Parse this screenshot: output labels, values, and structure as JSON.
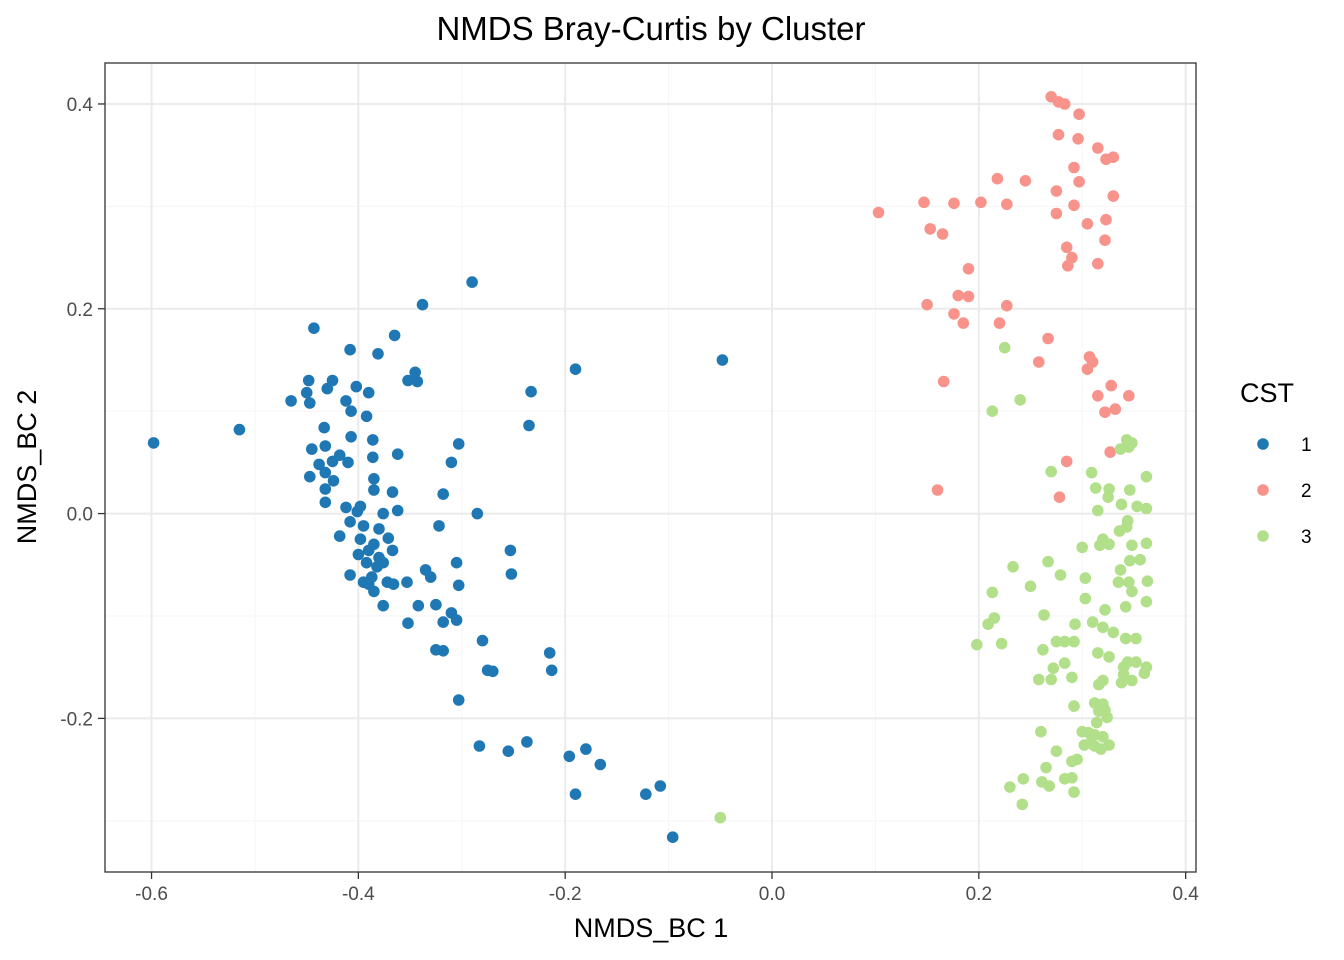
{
  "chart_data": {
    "type": "scatter",
    "title": "NMDS Bray-Curtis by Cluster",
    "xlabel": "NMDS_BC 1",
    "ylabel": "NMDS_BC 2",
    "xlim": [
      -0.645,
      0.41
    ],
    "ylim": [
      -0.35,
      0.44
    ],
    "x_ticks": [
      -0.6,
      -0.4,
      -0.2,
      0.0,
      0.2,
      0.4
    ],
    "x_tick_labels": [
      "-0.6",
      "-0.4",
      "-0.2",
      "0.0",
      "0.2",
      "0.4"
    ],
    "y_ticks": [
      -0.2,
      0.0,
      0.2,
      0.4
    ],
    "y_tick_labels": [
      "-0.2",
      "0.0",
      "0.2",
      "0.4"
    ],
    "grid": true,
    "legend": {
      "title": "CST",
      "placement": "right"
    },
    "colors": {
      "background": "#ffffff",
      "panel_border": "#333333",
      "grid_major": "#ebebeb",
      "grid_minor": "#f5f5f5"
    },
    "series": [
      {
        "name": "1",
        "color": "#1f78b4",
        "points": [
          [
            -0.598,
            0.069
          ],
          [
            -0.515,
            0.082
          ],
          [
            -0.29,
            0.226
          ],
          [
            -0.338,
            0.204
          ],
          [
            -0.443,
            0.181
          ],
          [
            -0.365,
            0.174
          ],
          [
            -0.408,
            0.16
          ],
          [
            -0.381,
            0.156
          ],
          [
            -0.048,
            0.15
          ],
          [
            -0.19,
            0.141
          ],
          [
            -0.345,
            0.138
          ],
          [
            -0.352,
            0.13
          ],
          [
            -0.343,
            0.129
          ],
          [
            -0.448,
            0.13
          ],
          [
            -0.425,
            0.13
          ],
          [
            -0.402,
            0.124
          ],
          [
            -0.43,
            0.122
          ],
          [
            -0.45,
            0.118
          ],
          [
            -0.39,
            0.118
          ],
          [
            -0.233,
            0.119
          ],
          [
            -0.465,
            0.11
          ],
          [
            -0.447,
            0.108
          ],
          [
            -0.412,
            0.11
          ],
          [
            -0.407,
            0.1
          ],
          [
            -0.392,
            0.095
          ],
          [
            -0.235,
            0.086
          ],
          [
            -0.433,
            0.084
          ],
          [
            -0.407,
            0.075
          ],
          [
            -0.386,
            0.072
          ],
          [
            -0.303,
            0.068
          ],
          [
            -0.432,
            0.066
          ],
          [
            -0.445,
            0.063
          ],
          [
            -0.362,
            0.058
          ],
          [
            -0.418,
            0.057
          ],
          [
            -0.386,
            0.055
          ],
          [
            -0.425,
            0.051
          ],
          [
            -0.41,
            0.05
          ],
          [
            -0.31,
            0.05
          ],
          [
            -0.438,
            0.048
          ],
          [
            -0.432,
            0.04
          ],
          [
            -0.447,
            0.036
          ],
          [
            -0.424,
            0.032
          ],
          [
            -0.385,
            0.034
          ],
          [
            -0.432,
            0.024
          ],
          [
            -0.385,
            0.023
          ],
          [
            -0.367,
            0.021
          ],
          [
            -0.318,
            0.019
          ],
          [
            -0.432,
            0.011
          ],
          [
            -0.412,
            0.006
          ],
          [
            -0.398,
            0.007
          ],
          [
            -0.401,
            0.002
          ],
          [
            -0.362,
            0.003
          ],
          [
            -0.376,
            0.0
          ],
          [
            -0.285,
            0.0
          ],
          [
            -0.408,
            -0.008
          ],
          [
            -0.395,
            -0.012
          ],
          [
            -0.322,
            -0.012
          ],
          [
            -0.38,
            -0.015
          ],
          [
            -0.418,
            -0.022
          ],
          [
            -0.398,
            -0.025
          ],
          [
            -0.371,
            -0.024
          ],
          [
            -0.385,
            -0.03
          ],
          [
            -0.39,
            -0.036
          ],
          [
            -0.367,
            -0.036
          ],
          [
            -0.253,
            -0.036
          ],
          [
            -0.4,
            -0.04
          ],
          [
            -0.38,
            -0.043
          ],
          [
            -0.376,
            -0.048
          ],
          [
            -0.392,
            -0.048
          ],
          [
            -0.305,
            -0.048
          ],
          [
            -0.382,
            -0.052
          ],
          [
            -0.335,
            -0.055
          ],
          [
            -0.408,
            -0.06
          ],
          [
            -0.252,
            -0.059
          ],
          [
            -0.387,
            -0.062
          ],
          [
            -0.33,
            -0.062
          ],
          [
            -0.395,
            -0.067
          ],
          [
            -0.39,
            -0.069
          ],
          [
            -0.372,
            -0.067
          ],
          [
            -0.353,
            -0.067
          ],
          [
            -0.366,
            -0.069
          ],
          [
            -0.303,
            -0.07
          ],
          [
            -0.385,
            -0.076
          ],
          [
            -0.376,
            -0.09
          ],
          [
            -0.342,
            -0.09
          ],
          [
            -0.325,
            -0.089
          ],
          [
            -0.31,
            -0.097
          ],
          [
            -0.352,
            -0.107
          ],
          [
            -0.305,
            -0.104
          ],
          [
            -0.318,
            -0.106
          ],
          [
            -0.28,
            -0.124
          ],
          [
            -0.325,
            -0.133
          ],
          [
            -0.318,
            -0.134
          ],
          [
            -0.215,
            -0.136
          ],
          [
            -0.275,
            -0.153
          ],
          [
            -0.27,
            -0.154
          ],
          [
            -0.213,
            -0.153
          ],
          [
            -0.303,
            -0.182
          ],
          [
            -0.283,
            -0.227
          ],
          [
            -0.237,
            -0.223
          ],
          [
            -0.255,
            -0.232
          ],
          [
            -0.196,
            -0.237
          ],
          [
            -0.18,
            -0.23
          ],
          [
            -0.166,
            -0.245
          ],
          [
            -0.19,
            -0.274
          ],
          [
            -0.122,
            -0.274
          ],
          [
            -0.108,
            -0.266
          ],
          [
            -0.096,
            -0.316
          ]
        ]
      },
      {
        "name": "2",
        "color": "#f8938b",
        "points": [
          [
            0.27,
            0.407
          ],
          [
            0.277,
            0.402
          ],
          [
            0.283,
            0.4
          ],
          [
            0.297,
            0.39
          ],
          [
            0.277,
            0.37
          ],
          [
            0.296,
            0.366
          ],
          [
            0.315,
            0.357
          ],
          [
            0.33,
            0.348
          ],
          [
            0.323,
            0.346
          ],
          [
            0.292,
            0.338
          ],
          [
            0.218,
            0.327
          ],
          [
            0.245,
            0.325
          ],
          [
            0.297,
            0.324
          ],
          [
            0.275,
            0.315
          ],
          [
            0.33,
            0.31
          ],
          [
            0.103,
            0.294
          ],
          [
            0.147,
            0.304
          ],
          [
            0.176,
            0.303
          ],
          [
            0.202,
            0.304
          ],
          [
            0.227,
            0.302
          ],
          [
            0.292,
            0.301
          ],
          [
            0.275,
            0.293
          ],
          [
            0.323,
            0.287
          ],
          [
            0.305,
            0.283
          ],
          [
            0.153,
            0.278
          ],
          [
            0.165,
            0.273
          ],
          [
            0.322,
            0.267
          ],
          [
            0.285,
            0.26
          ],
          [
            0.29,
            0.25
          ],
          [
            0.286,
            0.242
          ],
          [
            0.315,
            0.244
          ],
          [
            0.19,
            0.239
          ],
          [
            0.18,
            0.213
          ],
          [
            0.19,
            0.212
          ],
          [
            0.15,
            0.204
          ],
          [
            0.227,
            0.203
          ],
          [
            0.176,
            0.195
          ],
          [
            0.185,
            0.186
          ],
          [
            0.22,
            0.186
          ],
          [
            0.267,
            0.171
          ],
          [
            0.307,
            0.153
          ],
          [
            0.31,
            0.148
          ],
          [
            0.305,
            0.141
          ],
          [
            0.258,
            0.148
          ],
          [
            0.166,
            0.129
          ],
          [
            0.328,
            0.125
          ],
          [
            0.315,
            0.115
          ],
          [
            0.345,
            0.115
          ],
          [
            0.332,
            0.102
          ],
          [
            0.322,
            0.099
          ],
          [
            0.327,
            0.06
          ],
          [
            0.285,
            0.051
          ],
          [
            0.16,
            0.023
          ],
          [
            0.278,
            0.016
          ]
        ]
      },
      {
        "name": "3",
        "color": "#b2df8a",
        "points": [
          [
            0.225,
            0.162
          ],
          [
            0.24,
            0.111
          ],
          [
            0.213,
            0.1
          ],
          [
            0.343,
            0.072
          ],
          [
            0.348,
            0.069
          ],
          [
            0.345,
            0.065
          ],
          [
            0.337,
            0.063
          ],
          [
            0.27,
            0.041
          ],
          [
            0.309,
            0.04
          ],
          [
            0.362,
            0.036
          ],
          [
            0.313,
            0.025
          ],
          [
            0.326,
            0.024
          ],
          [
            0.346,
            0.023
          ],
          [
            0.325,
            0.016
          ],
          [
            0.338,
            0.009
          ],
          [
            0.353,
            0.007
          ],
          [
            0.315,
            0.003
          ],
          [
            0.362,
            0.005
          ],
          [
            0.344,
            -0.007
          ],
          [
            0.343,
            -0.013
          ],
          [
            0.336,
            -0.017
          ],
          [
            0.32,
            -0.025
          ],
          [
            0.326,
            -0.03
          ],
          [
            0.3,
            -0.033
          ],
          [
            0.317,
            -0.031
          ],
          [
            0.348,
            -0.031
          ],
          [
            0.362,
            -0.029
          ],
          [
            0.356,
            -0.045
          ],
          [
            0.346,
            -0.046
          ],
          [
            0.267,
            -0.047
          ],
          [
            0.337,
            -0.055
          ],
          [
            0.233,
            -0.052
          ],
          [
            0.279,
            -0.06
          ],
          [
            0.303,
            -0.063
          ],
          [
            0.335,
            -0.067
          ],
          [
            0.345,
            -0.067
          ],
          [
            0.363,
            -0.066
          ],
          [
            0.25,
            -0.071
          ],
          [
            0.213,
            -0.077
          ],
          [
            0.348,
            -0.076
          ],
          [
            0.303,
            -0.083
          ],
          [
            0.362,
            -0.086
          ],
          [
            0.342,
            -0.091
          ],
          [
            0.322,
            -0.094
          ],
          [
            0.263,
            -0.099
          ],
          [
            0.215,
            -0.102
          ],
          [
            0.209,
            -0.108
          ],
          [
            0.31,
            -0.106
          ],
          [
            0.293,
            -0.108
          ],
          [
            0.32,
            -0.111
          ],
          [
            0.33,
            -0.116
          ],
          [
            0.342,
            -0.122
          ],
          [
            0.352,
            -0.122
          ],
          [
            0.275,
            -0.125
          ],
          [
            0.283,
            -0.125
          ],
          [
            0.292,
            -0.125
          ],
          [
            0.198,
            -0.128
          ],
          [
            0.222,
            -0.127
          ],
          [
            0.262,
            -0.133
          ],
          [
            0.315,
            -0.136
          ],
          [
            0.326,
            -0.14
          ],
          [
            0.344,
            -0.145
          ],
          [
            0.352,
            -0.145
          ],
          [
            0.362,
            -0.15
          ],
          [
            0.34,
            -0.15
          ],
          [
            0.283,
            -0.146
          ],
          [
            0.272,
            -0.151
          ],
          [
            0.34,
            -0.157
          ],
          [
            0.36,
            -0.156
          ],
          [
            0.29,
            -0.16
          ],
          [
            0.258,
            -0.162
          ],
          [
            0.27,
            -0.162
          ],
          [
            0.32,
            -0.163
          ],
          [
            0.316,
            -0.167
          ],
          [
            0.338,
            -0.165
          ],
          [
            0.348,
            -0.163
          ],
          [
            0.312,
            -0.185
          ],
          [
            0.292,
            -0.188
          ],
          [
            0.32,
            -0.186
          ],
          [
            0.322,
            -0.192
          ],
          [
            0.316,
            -0.193
          ],
          [
            0.324,
            -0.199
          ],
          [
            0.314,
            -0.204
          ],
          [
            0.26,
            -0.213
          ],
          [
            0.3,
            -0.213
          ],
          [
            0.306,
            -0.214
          ],
          [
            0.312,
            -0.216
          ],
          [
            0.32,
            -0.218
          ],
          [
            0.308,
            -0.224
          ],
          [
            0.302,
            -0.226
          ],
          [
            0.312,
            -0.227
          ],
          [
            0.326,
            -0.226
          ],
          [
            0.318,
            -0.23
          ],
          [
            0.275,
            -0.232
          ],
          [
            0.295,
            -0.24
          ],
          [
            0.29,
            -0.242
          ],
          [
            0.265,
            -0.248
          ],
          [
            0.243,
            -0.259
          ],
          [
            0.283,
            -0.259
          ],
          [
            0.29,
            -0.258
          ],
          [
            0.261,
            -0.262
          ],
          [
            0.268,
            -0.266
          ],
          [
            0.23,
            -0.267
          ],
          [
            0.292,
            -0.272
          ],
          [
            0.242,
            -0.284
          ],
          [
            -0.05,
            -0.297
          ]
        ]
      }
    ]
  }
}
